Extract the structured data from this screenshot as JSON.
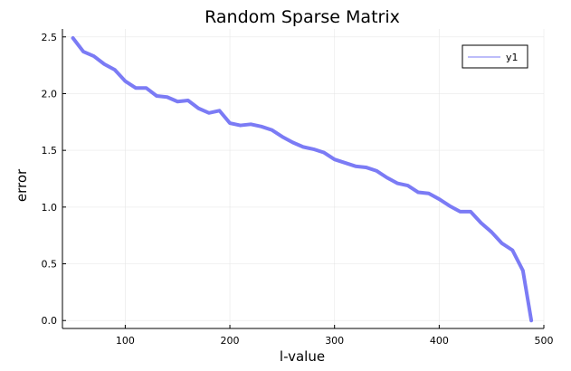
{
  "chart_data": {
    "type": "line",
    "title": "Random Sparse Matrix",
    "xlabel": "l-value",
    "ylabel": "error",
    "xlim": [
      40,
      500
    ],
    "ylim": [
      -0.07,
      2.57
    ],
    "x_ticks": [
      100,
      200,
      300,
      400,
      500
    ],
    "y_ticks": [
      0.0,
      0.5,
      1.0,
      1.5,
      2.0,
      2.5
    ],
    "x_tick_labels": [
      "100",
      "200",
      "300",
      "400",
      "500"
    ],
    "y_tick_labels": [
      "0.0",
      "0.5",
      "1.0",
      "1.5",
      "2.0",
      "2.5"
    ],
    "grid": true,
    "legend_position": "top-right",
    "series": [
      {
        "name": "y1",
        "color": "#7b7bf5",
        "x": [
          50,
          60,
          70,
          80,
          90,
          100,
          110,
          120,
          130,
          140,
          150,
          160,
          170,
          180,
          190,
          200,
          210,
          220,
          230,
          240,
          250,
          260,
          270,
          280,
          290,
          300,
          310,
          320,
          330,
          340,
          350,
          360,
          370,
          380,
          390,
          400,
          410,
          420,
          430,
          440,
          450,
          460,
          470,
          480,
          488
        ],
        "y": [
          2.49,
          2.37,
          2.33,
          2.26,
          2.21,
          2.11,
          2.05,
          2.05,
          1.98,
          1.97,
          1.93,
          1.94,
          1.87,
          1.83,
          1.85,
          1.74,
          1.72,
          1.73,
          1.71,
          1.68,
          1.62,
          1.57,
          1.53,
          1.51,
          1.48,
          1.42,
          1.39,
          1.36,
          1.35,
          1.32,
          1.26,
          1.21,
          1.19,
          1.13,
          1.12,
          1.07,
          1.01,
          0.96,
          0.96,
          0.86,
          0.78,
          0.68,
          0.62,
          0.44,
          0.0
        ]
      }
    ]
  }
}
